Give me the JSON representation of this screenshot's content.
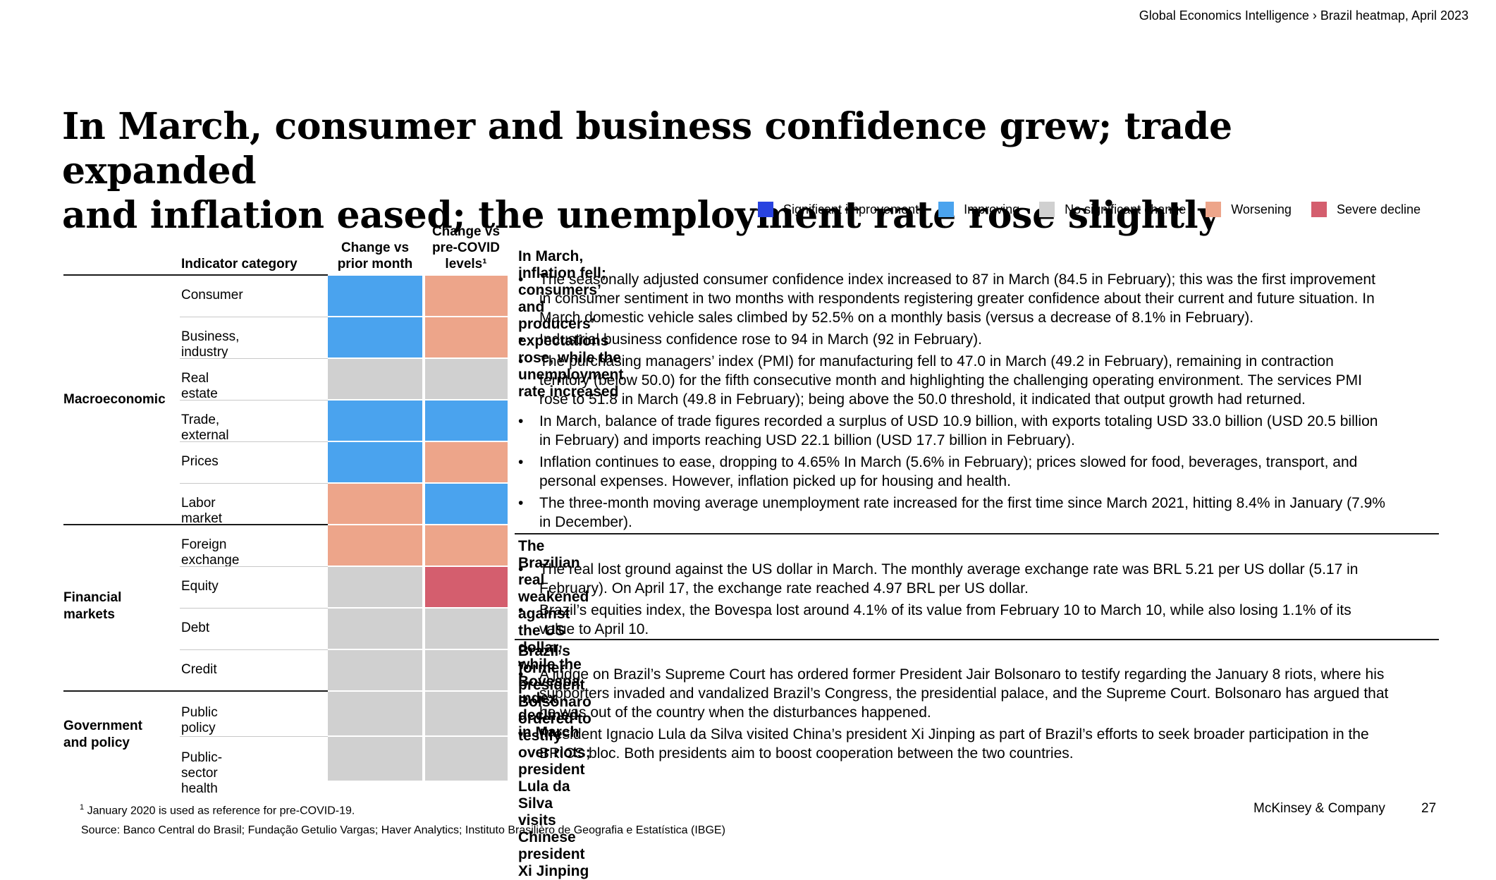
{
  "header": {
    "breadcrumb": "Global Economics Intelligence › Brazil heatmap, April 2023"
  },
  "title": {
    "line1": "In March, consumer and business confidence grew; trade expanded",
    "line2": "and inflation eased; the unemployment rate rose slightly"
  },
  "legend": [
    {
      "label": "Significant improvement",
      "color": "#2943e0"
    },
    {
      "label": "Improving",
      "color": "#4aa3ee"
    },
    {
      "label": "No significant change",
      "color": "#d0d0d0"
    },
    {
      "label": "Worsening",
      "color": "#eda58a"
    },
    {
      "label": "Severe decline",
      "color": "#d45e6e"
    }
  ],
  "chart_data": {
    "type": "heatmap",
    "columns": [
      "Change vs prior month",
      "Change vs pre-COVID levels¹"
    ],
    "column_headers": {
      "category": "Indicator category",
      "prior": "Change vs prior month",
      "precovid_line1": "Change vs",
      "precovid_line2": "pre-COVID",
      "precovid_line3": "levels¹"
    },
    "scale": [
      "Significant improvement",
      "Improving",
      "No significant change",
      "Worsening",
      "Severe decline"
    ],
    "groups": [
      {
        "name": "Macroeconomic",
        "rows": [
          {
            "label": "Consumer",
            "prior_month": "Improving",
            "pre_covid": "Worsening"
          },
          {
            "label": "Business, industry",
            "prior_month": "Improving",
            "pre_covid": "Worsening"
          },
          {
            "label": "Real estate",
            "prior_month": "No significant change",
            "pre_covid": "No significant change"
          },
          {
            "label": "Trade, external",
            "prior_month": "Improving",
            "pre_covid": "Improving"
          },
          {
            "label": "Prices",
            "prior_month": "Improving",
            "pre_covid": "Worsening"
          },
          {
            "label": "Labor market",
            "prior_month": "Worsening",
            "pre_covid": "Improving"
          }
        ]
      },
      {
        "name": "Financial markets",
        "label_line1": "Financial",
        "label_line2": "markets",
        "rows": [
          {
            "label": "Foreign exchange",
            "prior_month": "Worsening",
            "pre_covid": "Worsening"
          },
          {
            "label": "Equity",
            "prior_month": "No significant change",
            "pre_covid": "Severe decline"
          },
          {
            "label": "Debt",
            "prior_month": "No significant change",
            "pre_covid": "No significant change"
          },
          {
            "label": "Credit",
            "prior_month": "No significant change",
            "pre_covid": "No significant change"
          }
        ]
      },
      {
        "name": "Government and policy",
        "label_line1": "Government",
        "label_line2": "and policy",
        "rows": [
          {
            "label": "Public policy",
            "prior_month": "No significant change",
            "pre_covid": "No significant change"
          },
          {
            "label": "Public-sector health",
            "prior_month": "No significant change",
            "pre_covid": "No significant change"
          }
        ]
      }
    ]
  },
  "sections": [
    {
      "title": "In March, inflation fell; consumers’ and producers’ expectations rose, while the unemployment rate increased",
      "bullets": [
        [
          "The seasonally adjusted consumer confidence index increased to 87 in March (84.5 in February); this was the first improvement",
          "in consumer sentiment in two months with respondents registering greater confidence about their current and future situation. In",
          "March domestic vehicle sales climbed by 52.5% on a monthly basis (versus a decrease of 8.1% in February)."
        ],
        [
          "Industrial business confidence rose to 94 in March (92 in February)."
        ],
        [
          "The purchasing managers’ index (PMI) for manufacturing fell to 47.0 in March (49.2 in February), remaining in contraction",
          "territory (below 50.0) for the fifth consecutive month and highlighting the challenging operating environment. The services PMI",
          "rose to 51.8 in March (49.8 in February); being above the 50.0 threshold, it indicated that output growth had returned."
        ],
        [
          "In March, balance of trade figures recorded a surplus of USD 10.9 billion, with exports totaling USD 33.0 billion (USD 20.5 billion",
          "in February) and imports reaching USD 22.1 billion (USD 17.7 billion in February)."
        ],
        [
          "Inflation continues to ease, dropping to 4.65% In March (5.6% in February); prices slowed for food, beverages, transport, and",
          "personal expenses. However, inflation picked up for housing and health."
        ],
        [
          "The three-month moving average unemployment rate increased for the first time since March 2021, hitting 8.4% in January (7.9%",
          "in December)."
        ]
      ]
    },
    {
      "title": "The Brazilian real weakened against the US dollar, while the Bovespa index declined in March",
      "bullets": [
        [
          "The real lost ground against the US dollar in March. The monthly average exchange rate was BRL 5.21 per US dollar (5.17 in",
          "February). On April 17, the exchange rate reached 4.97 BRL per US dollar."
        ],
        [
          "Brazil’s equities index, the Bovespa lost around 4.1% of its value from February 10 to March 10, while also losing 1.1% of its",
          "value to April 10."
        ]
      ]
    },
    {
      "title": "Brazil’s former president Bolsonaro ordered to testify over riots; president Lula da Silva visits Chinese president Xi Jinping",
      "bullets": [
        [
          "A judge on Brazil’s Supreme Court has ordered former President Jair Bolsonaro to testify regarding the January 8 riots, where his",
          "supporters invaded and vandalized Brazil’s Congress, the presidential palace, and the Supreme Court. Bolsonaro has argued that",
          "he was out of the country when the disturbances happened."
        ],
        [
          "President Ignacio Lula da Silva visited China’s president Xi Jinping as part of Brazil’s efforts to seek broader participation in the",
          "BRICS bloc. Both presidents aim to boost cooperation between the two countries."
        ]
      ]
    }
  ],
  "bullet_char": "•",
  "footer": {
    "footnote_mark": "1",
    "footnote": "January 2020 is used as reference for pre-COVID-19.",
    "source": "Source: Banco Central do Brasil; Fundação Getulio Vargas; Haver Analytics; Instituto Brasilièro de Geografia e Estatística (IBGE)",
    "brand": "McKinsey & Company",
    "page": "27"
  }
}
